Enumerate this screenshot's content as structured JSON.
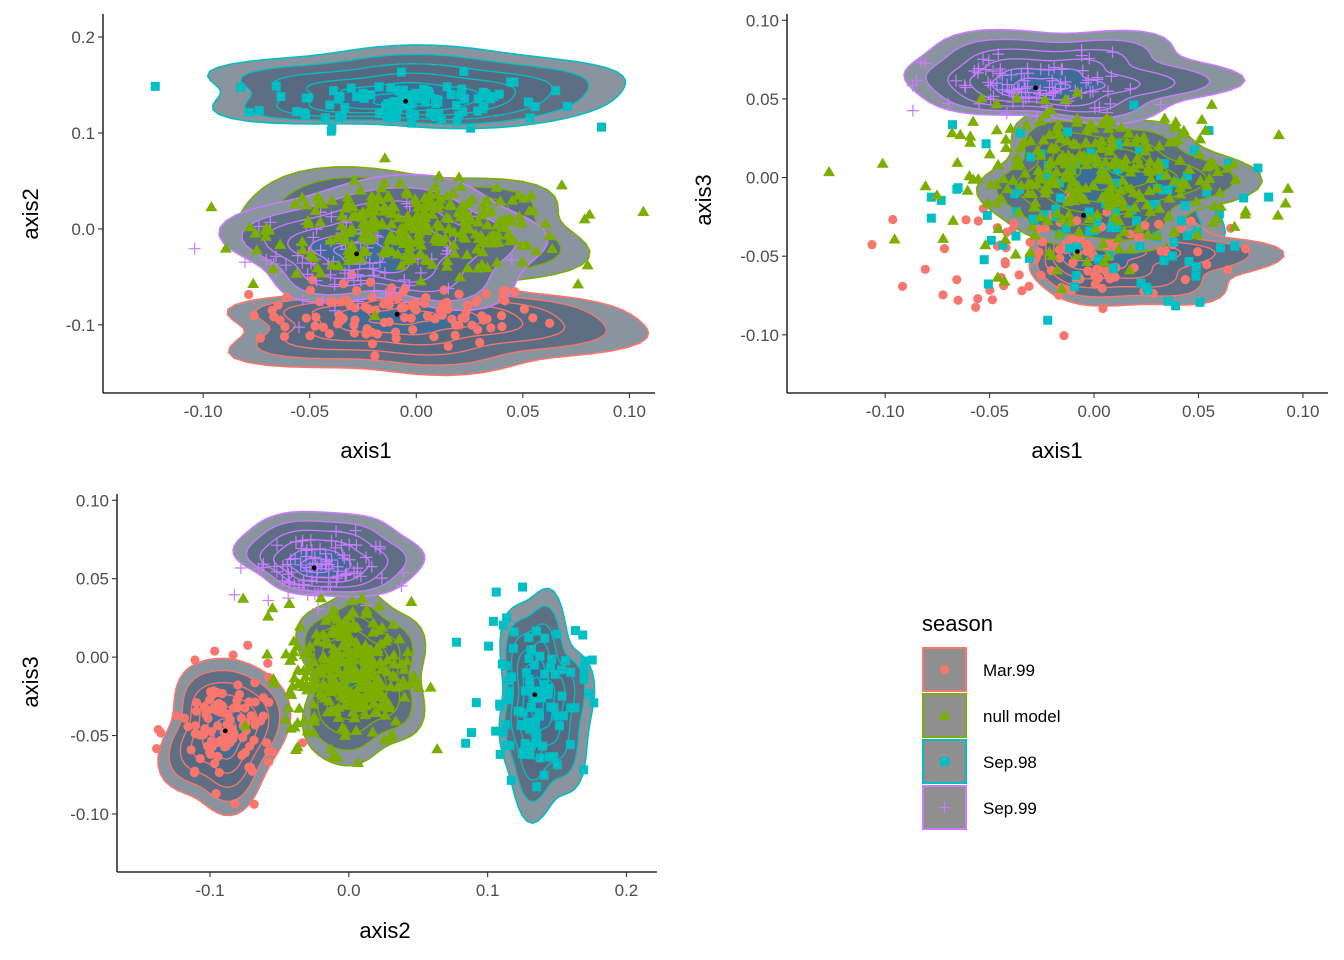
{
  "chart_data": [
    {
      "type": "scatter",
      "panel": "top-left",
      "xlabel": "axis1",
      "ylabel": "axis2",
      "xlim": [
        -0.147,
        0.112
      ],
      "ylim": [
        -0.171,
        0.224
      ],
      "xticks": [
        "-0.10",
        "-0.05",
        "0.00",
        "0.05",
        "0.10"
      ],
      "xtick_values": [
        -0.1,
        -0.05,
        0.0,
        0.05,
        0.1
      ],
      "yticks": [
        "0.2",
        "0.1",
        "0.0",
        "-0.1"
      ],
      "ytick_values": [
        0.2,
        0.1,
        0.0,
        -0.1
      ],
      "grid": false,
      "overlay": "2d density contours (filled) per season with black centroid points",
      "series": [
        {
          "name": "Mar.99",
          "centroid": [
            -0.009,
            -0.089
          ],
          "spread": [
            0.045,
            0.022
          ],
          "n": 110,
          "contour_extent": [
            [
              -0.09,
              0.1
            ],
            [
              -0.152,
              -0.055
            ]
          ]
        },
        {
          "name": "null model",
          "centroid": [
            0.0,
            0.0
          ],
          "spread": [
            0.045,
            0.03
          ],
          "n": 300,
          "contour_extent": [
            [
              -0.085,
              0.078
            ],
            [
              -0.068,
              0.063
            ]
          ]
        },
        {
          "name": "Sep.98",
          "centroid": [
            -0.005,
            0.133
          ],
          "spread": [
            0.045,
            0.018
          ],
          "n": 100,
          "contour_extent": [
            [
              -0.099,
              0.097
            ],
            [
              0.103,
              0.19
            ]
          ]
        },
        {
          "name": "Sep.99",
          "centroid": [
            -0.028,
            -0.026
          ],
          "spread": [
            0.035,
            0.03
          ],
          "n": 90,
          "contour_extent": [
            [
              -0.082,
              0.058
            ],
            [
              -0.085,
              0.055
            ]
          ]
        }
      ],
      "centroids": [
        [
          -0.009,
          -0.089
        ],
        [
          -0.005,
          0.133
        ],
        [
          -0.028,
          -0.026
        ]
      ]
    },
    {
      "type": "scatter",
      "panel": "top-right",
      "xlabel": "axis1",
      "ylabel": "axis3",
      "xlim": [
        -0.147,
        0.112
      ],
      "ylim": [
        -0.137,
        0.104
      ],
      "xticks": [
        "-0.10",
        "-0.05",
        "0.00",
        "0.05",
        "0.10"
      ],
      "xtick_values": [
        -0.1,
        -0.05,
        0.0,
        0.05,
        0.1
      ],
      "yticks": [
        "0.10",
        "0.05",
        "0.00",
        "-0.05",
        "-0.10"
      ],
      "ytick_values": [
        0.1,
        0.05,
        0.0,
        -0.05,
        -0.1
      ],
      "grid": false,
      "overlay": "2d density contours (filled) per season with black centroid points",
      "series": [
        {
          "name": "Mar.99",
          "centroid": [
            -0.008,
            -0.047
          ],
          "spread": [
            0.045,
            0.025
          ],
          "n": 110,
          "contour_extent": [
            [
              -0.035,
              0.08
            ],
            [
              -0.082,
              -0.025
            ]
          ]
        },
        {
          "name": "null model",
          "centroid": [
            0.0,
            0.0
          ],
          "spread": [
            0.045,
            0.03
          ],
          "n": 300,
          "contour_extent": [
            [
              -0.055,
              0.068
            ],
            [
              -0.045,
              0.04
            ]
          ]
        },
        {
          "name": "Sep.98",
          "centroid": [
            -0.005,
            -0.024
          ],
          "spread": [
            0.05,
            0.04
          ],
          "n": 100,
          "contour_extent": [
            [
              -0.04,
              0.07
            ],
            [
              -0.045,
              0.025
            ]
          ]
        },
        {
          "name": "Sep.99",
          "centroid": [
            -0.028,
            0.057
          ],
          "spread": [
            0.035,
            0.015
          ],
          "n": 90,
          "contour_extent": [
            [
              -0.09,
              0.06
            ],
            [
              0.035,
              0.095
            ]
          ]
        }
      ],
      "centroids": [
        [
          -0.028,
          0.057
        ],
        [
          -0.005,
          -0.024
        ],
        [
          -0.008,
          -0.047
        ]
      ]
    },
    {
      "type": "scatter",
      "panel": "bottom-left",
      "xlabel": "axis2",
      "ylabel": "axis3",
      "xlim": [
        -0.167,
        0.222
      ],
      "ylim": [
        -0.137,
        0.104
      ],
      "xticks": [
        "-0.1",
        "0.0",
        "0.1",
        "0.2"
      ],
      "xtick_values": [
        -0.1,
        0.0,
        0.1,
        0.2
      ],
      "yticks": [
        "0.10",
        "0.05",
        "0.00",
        "-0.05",
        "-0.10"
      ],
      "ytick_values": [
        0.1,
        0.05,
        0.0,
        -0.05,
        -0.1
      ],
      "grid": false,
      "overlay": "2d density contours (filled) per season with black centroid points",
      "series": [
        {
          "name": "Mar.99",
          "centroid": [
            -0.089,
            -0.047
          ],
          "spread": [
            0.025,
            0.025
          ],
          "n": 110,
          "contour_extent": [
            [
              -0.135,
              -0.045
            ],
            [
              -0.097,
              0.0
            ]
          ]
        },
        {
          "name": "null model",
          "centroid": [
            0.0,
            -0.01
          ],
          "spread": [
            0.03,
            0.03
          ],
          "n": 300,
          "contour_extent": [
            [
              -0.04,
              0.058
            ],
            [
              -0.065,
              0.04
            ]
          ]
        },
        {
          "name": "Sep.98",
          "centroid": [
            0.134,
            -0.024
          ],
          "spread": [
            0.025,
            0.035
          ],
          "n": 100,
          "contour_extent": [
            [
              0.105,
              0.175
            ],
            [
              -0.098,
              0.037
            ]
          ]
        },
        {
          "name": "Sep.99",
          "centroid": [
            -0.025,
            0.057
          ],
          "spread": [
            0.03,
            0.015
          ],
          "n": 90,
          "contour_extent": [
            [
              -0.08,
              0.052
            ],
            [
              0.038,
              0.093
            ]
          ]
        }
      ],
      "centroids": [
        [
          -0.025,
          0.057
        ],
        [
          -0.089,
          -0.047
        ],
        [
          0.134,
          -0.024
        ]
      ]
    }
  ],
  "legend": {
    "title": "season",
    "position": "bottom-right",
    "items": [
      {
        "label": "Mar.99",
        "color": "#F8766D",
        "shape": "circle"
      },
      {
        "label": "null model",
        "color": "#7CAE00",
        "shape": "triangle"
      },
      {
        "label": "Sep.98",
        "color": "#00BFC4",
        "shape": "square"
      },
      {
        "label": "Sep.99",
        "color": "#C77CFF",
        "shape": "plus"
      }
    ]
  },
  "colors": {
    "contour_fill_outer": "#8a949e",
    "contour_fill_mid": "#56697f",
    "contour_fill_inner": "#3c6f9a",
    "centroid": "#000000",
    "legend_key_bg": "#8f8f8f"
  }
}
